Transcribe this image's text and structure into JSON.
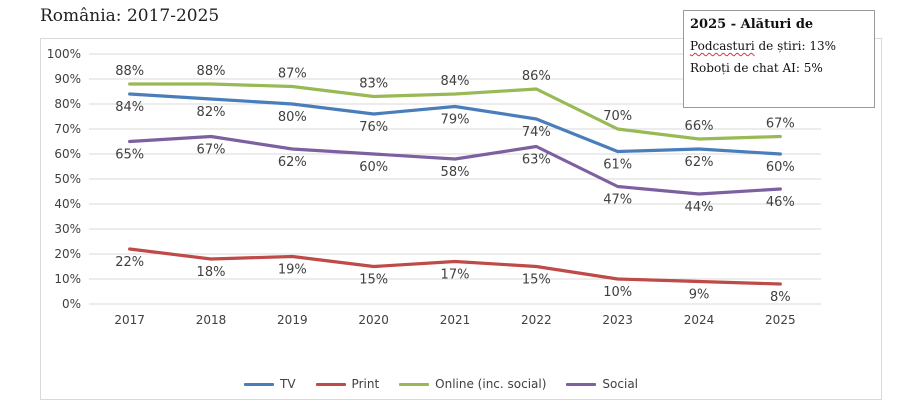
{
  "header": {
    "title": "România: 2017-2025"
  },
  "note": {
    "title": "2025 - Alături de",
    "lines": [
      {
        "label": "Podcasturi",
        "text": " de știri: 13%"
      },
      {
        "label": "",
        "text": "Roboți de chat AI: 5%"
      }
    ]
  },
  "colors": {
    "TV": "#4a7ebb",
    "Print": "#be4b48",
    "Online (inc. social)": "#98b954",
    "Social": "#7d60a0",
    "grid": "#d9d9d9",
    "text": "#404040"
  },
  "chart_data": {
    "type": "line",
    "title": "",
    "xlabel": "",
    "ylabel": "",
    "x": [
      "2017",
      "2018",
      "2019",
      "2020",
      "2021",
      "2022",
      "2023",
      "2024",
      "2025"
    ],
    "ylim": [
      0,
      100
    ],
    "yticks": [
      "0%",
      "10%",
      "20%",
      "30%",
      "40%",
      "50%",
      "60%",
      "70%",
      "80%",
      "90%",
      "100%"
    ],
    "grid": true,
    "legend": "bottom",
    "series": [
      {
        "name": "TV",
        "values": [
          84,
          82,
          80,
          76,
          79,
          74,
          61,
          62,
          60
        ],
        "labels": [
          "84%",
          "82%",
          "80%",
          "76%",
          "79%",
          "74%",
          "61%",
          "62%",
          "60%"
        ]
      },
      {
        "name": "Print",
        "values": [
          22,
          18,
          19,
          15,
          17,
          15,
          10,
          9,
          8
        ],
        "labels": [
          "22%",
          "18%",
          "19%",
          "15%",
          "17%",
          "15%",
          "10%",
          "9%",
          "8%"
        ]
      },
      {
        "name": "Online (inc. social)",
        "values": [
          88,
          88,
          87,
          83,
          84,
          86,
          70,
          66,
          67
        ],
        "labels": [
          "88%",
          "88%",
          "87%",
          "83%",
          "84%",
          "86%",
          "70%",
          "66%",
          "67%"
        ]
      },
      {
        "name": "Social",
        "values": [
          65,
          67,
          62,
          60,
          58,
          63,
          47,
          44,
          46
        ],
        "labels": [
          "65%",
          "67%",
          "62%",
          "60%",
          "58%",
          "63%",
          "47%",
          "44%",
          "46%"
        ]
      }
    ]
  }
}
